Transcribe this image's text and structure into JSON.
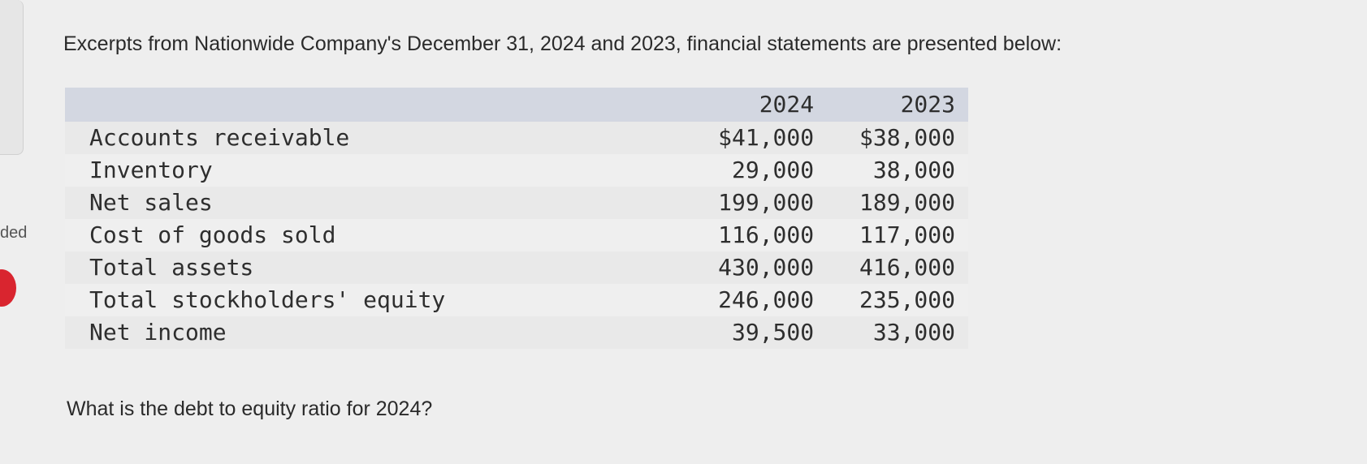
{
  "side": {
    "partial_text": "ded"
  },
  "intro": "Excerpts from Nationwide Company's December 31, 2024 and 2023, financial statements are presented below:",
  "table": {
    "columns": [
      "2024",
      "2023"
    ],
    "rows": [
      {
        "label": "Accounts receivable",
        "v2024": "$41,000",
        "v2023": "$38,000"
      },
      {
        "label": "Inventory",
        "v2024": "29,000",
        "v2023": "38,000"
      },
      {
        "label": "Net sales",
        "v2024": "199,000",
        "v2023": "189,000"
      },
      {
        "label": "Cost of goods sold",
        "v2024": "116,000",
        "v2023": "117,000"
      },
      {
        "label": "Total assets",
        "v2024": "430,000",
        "v2023": "416,000"
      },
      {
        "label": "Total stockholders' equity",
        "v2024": "246,000",
        "v2023": "235,000"
      },
      {
        "label": "Net income",
        "v2024": "39,500",
        "v2023": "33,000"
      }
    ]
  },
  "question": "What is the debt to equity ratio for 2024?",
  "colors": {
    "header_band": "#d3d7e1",
    "alert_dot": "#d9252f"
  }
}
